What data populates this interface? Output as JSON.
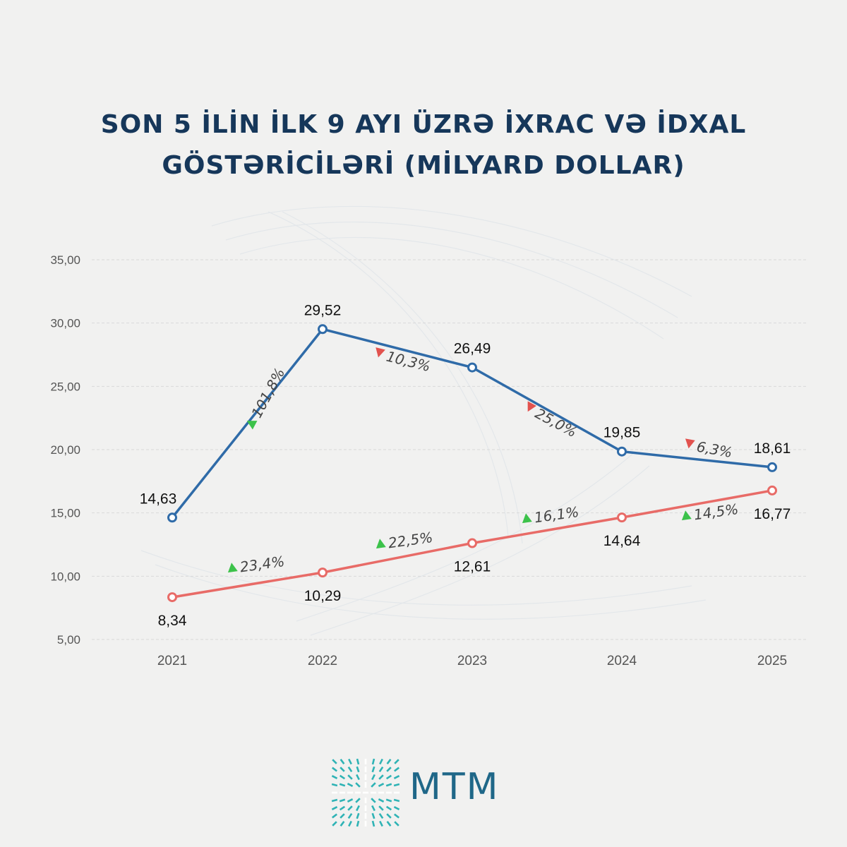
{
  "title": {
    "line1": "SON 5 İLİN İLK 9 AYI ÜZRƏ İXRAC VƏ İDXAL",
    "line2": "GÖSTƏRİCİLƏRİ (MİLYARD DOLLAR)"
  },
  "logo": {
    "text": "MTM"
  },
  "colors": {
    "blue_series": "#2f6ba8",
    "red_series": "#e86b67",
    "up_arrow": "#3cc24a",
    "down_arrow": "#e2524e",
    "axis_text": "#555555",
    "grid": "#d9d9d9"
  },
  "chart_data": {
    "type": "line",
    "title": "SON 5 İLİN İLK 9 AYI ÜZRƏ İXRAC VƏ İDXAL GÖSTƏRİCİLƏRİ (MİLYARD DOLLAR)",
    "categories": [
      "2021",
      "2022",
      "2023",
      "2024",
      "2025"
    ],
    "ylim": [
      5,
      35
    ],
    "yticks": [
      "5,00",
      "10,00",
      "15,00",
      "20,00",
      "25,00",
      "30,00",
      "35,00"
    ],
    "ytick_values": [
      5,
      10,
      15,
      20,
      25,
      30,
      35
    ],
    "grid": true,
    "series": [
      {
        "name": "blue",
        "color_key": "blue_series",
        "values": [
          14.63,
          29.52,
          26.49,
          19.85,
          18.61
        ],
        "labels": [
          "14,63",
          "29,52",
          "26,49",
          "19,85",
          "18,61"
        ],
        "changes": [
          {
            "text": "101,8%",
            "direction": "up"
          },
          {
            "text": "10,3%",
            "direction": "down"
          },
          {
            "text": "25,0%",
            "direction": "down"
          },
          {
            "text": "6,3%",
            "direction": "down"
          }
        ]
      },
      {
        "name": "red",
        "color_key": "red_series",
        "values": [
          8.34,
          10.29,
          12.61,
          14.64,
          16.77
        ],
        "labels": [
          "8,34",
          "10,29",
          "12,61",
          "14,64",
          "16,77"
        ],
        "changes": [
          {
            "text": "23,4%",
            "direction": "up"
          },
          {
            "text": "22,5%",
            "direction": "up"
          },
          {
            "text": "16,1%",
            "direction": "up"
          },
          {
            "text": "14,5%",
            "direction": "up"
          }
        ]
      }
    ]
  }
}
